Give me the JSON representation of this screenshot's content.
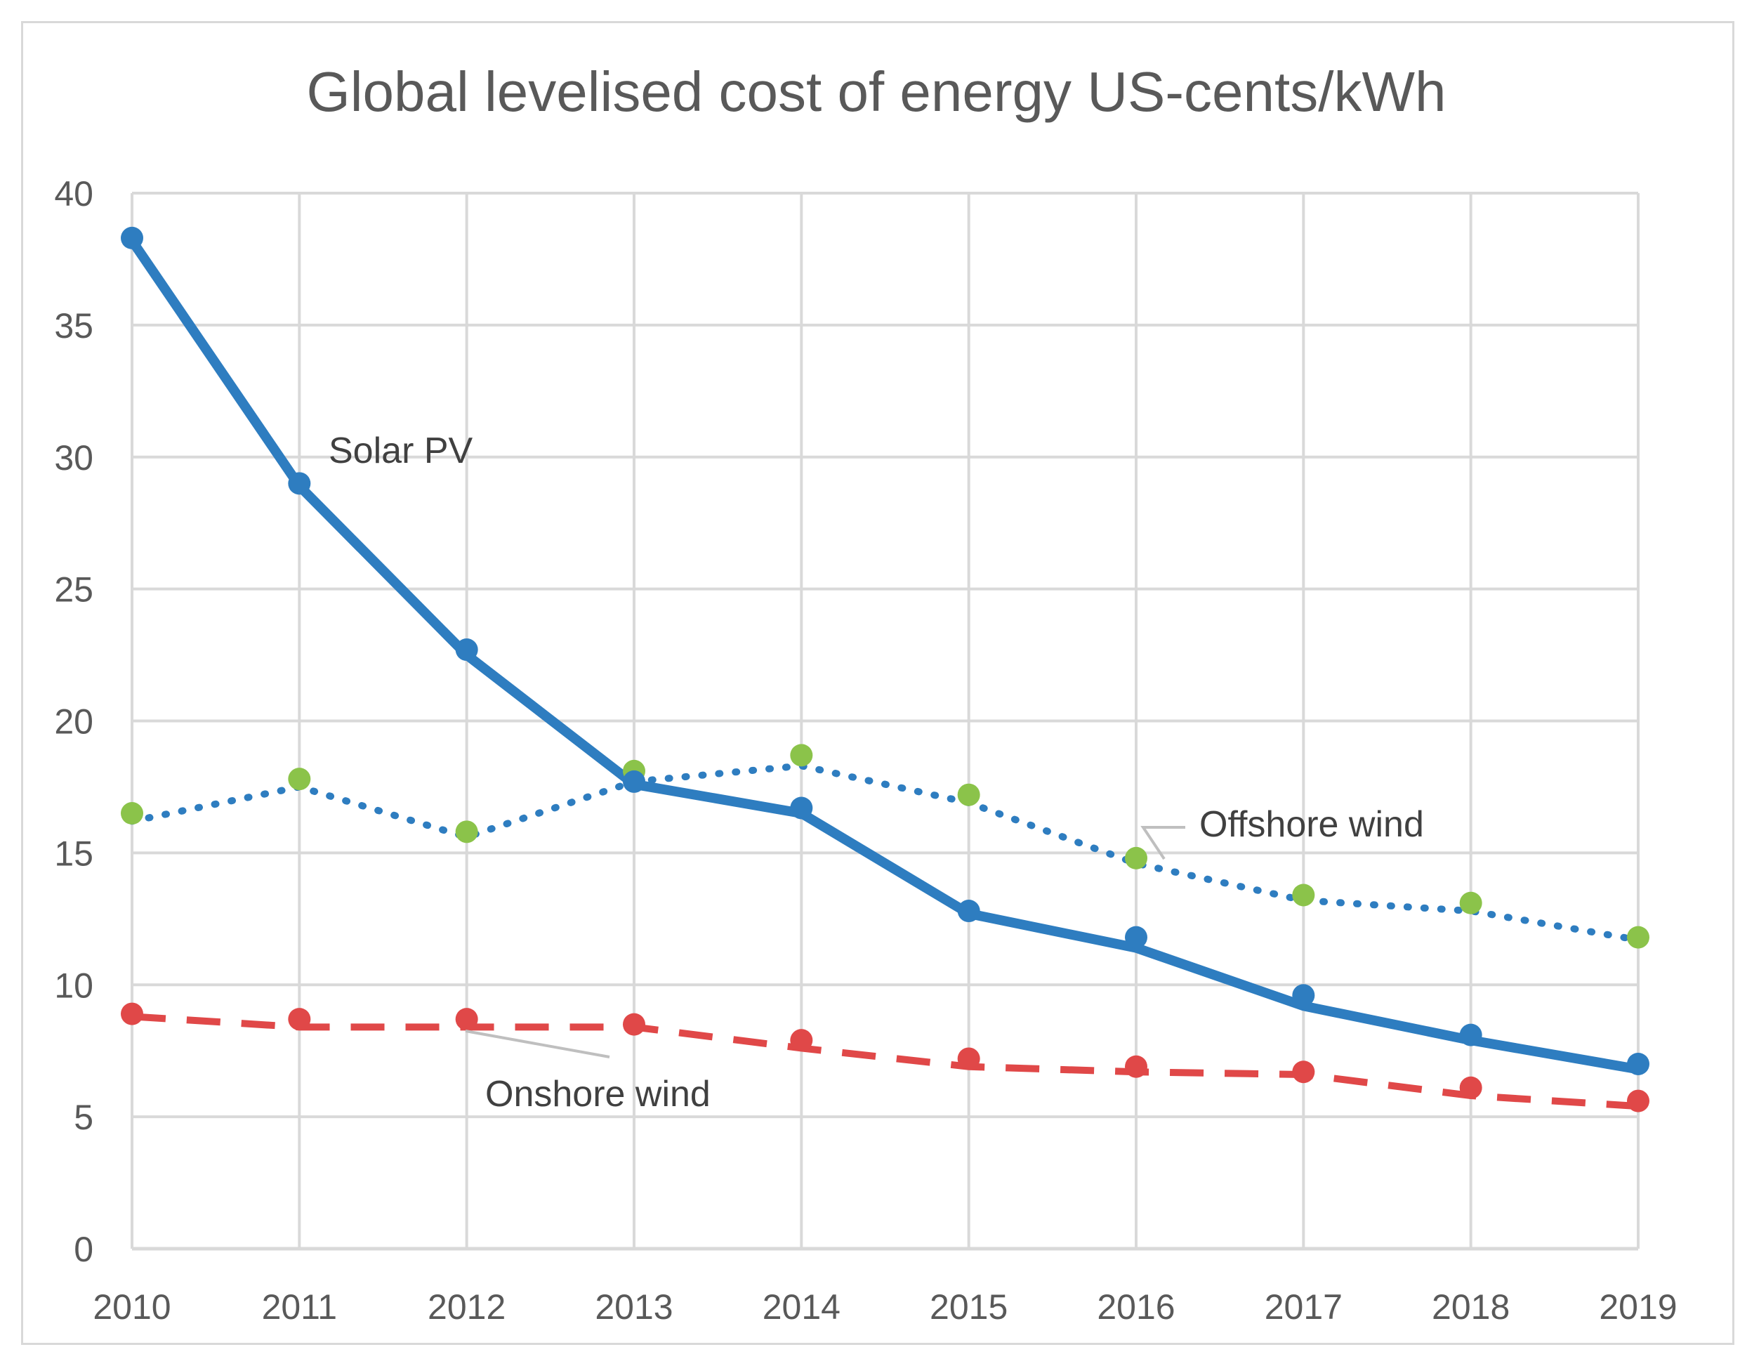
{
  "chart_data": {
    "type": "line",
    "title": "Global levelised cost of energy US-cents/kWh",
    "xlabel": "",
    "ylabel": "",
    "categories": [
      "2010",
      "2011",
      "2012",
      "2013",
      "2014",
      "2015",
      "2016",
      "2017",
      "2018",
      "2019"
    ],
    "ylim": [
      0,
      40
    ],
    "yticks": [
      0,
      5,
      10,
      15,
      20,
      25,
      30,
      35,
      40
    ],
    "grid": true,
    "series": [
      {
        "name": "Solar PV",
        "style": "solid",
        "color": "#2e7dc0",
        "marker_color": "#2e7dc0",
        "line_values": [
          38.2,
          28.9,
          22.5,
          17.6,
          16.5,
          12.7,
          11.4,
          9.2,
          7.9,
          6.8
        ],
        "marker_values": [
          38.3,
          29.0,
          22.7,
          17.7,
          16.7,
          12.8,
          11.8,
          9.6,
          8.1,
          7.0
        ]
      },
      {
        "name": "Offshore wind",
        "style": "dotted",
        "color": "#2e7dc0",
        "marker_color": "#8bc34a",
        "line_values": [
          16.2,
          17.5,
          15.6,
          17.7,
          18.3,
          16.9,
          14.6,
          13.2,
          12.8,
          11.7
        ],
        "marker_values": [
          16.5,
          17.8,
          15.8,
          18.1,
          18.7,
          17.2,
          14.8,
          13.4,
          13.1,
          11.8
        ]
      },
      {
        "name": "Onshore wind",
        "style": "dashed",
        "color": "#e04848",
        "marker_color": "#e04848",
        "line_values": [
          8.8,
          8.4,
          8.4,
          8.4,
          7.6,
          6.9,
          6.7,
          6.6,
          5.8,
          5.4
        ],
        "marker_values": [
          8.9,
          8.7,
          8.7,
          8.5,
          7.9,
          7.2,
          6.9,
          6.7,
          6.1,
          5.6
        ]
      }
    ],
    "annotations": [
      {
        "text": "Solar PV",
        "series": "Solar PV"
      },
      {
        "text": "Offshore wind",
        "series": "Offshore wind"
      },
      {
        "text": "Onshore wind",
        "series": "Onshore wind"
      }
    ],
    "colors": {
      "grid": "#d9d9d9",
      "axis": "#d9d9d9",
      "text": "#595959"
    }
  }
}
